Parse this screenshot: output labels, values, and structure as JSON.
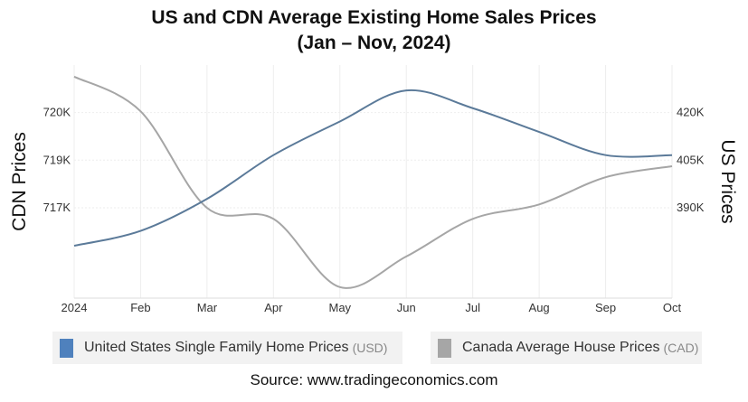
{
  "chart_data": {
    "type": "line",
    "title": "US and CDN Average Existing Home Sales Prices",
    "subtitle": "(Jan – Nov, 2024)",
    "categories": [
      "2024",
      "Feb",
      "Mar",
      "Apr",
      "May",
      "Jun",
      "Jul",
      "Aug",
      "Sep",
      "Oct"
    ],
    "y_left": {
      "label": "CDN Prices",
      "tick_labels": [
        "720K",
        "719K",
        "717K"
      ],
      "range": [
        716970,
        721000
      ]
    },
    "y_right": {
      "label": "US Prices",
      "ticks": [
        420000,
        405000,
        390000
      ],
      "tick_labels": [
        "420K",
        "405K",
        "390K"
      ],
      "range": [
        361500,
        435000
      ]
    },
    "series": [
      {
        "name": "United States Single Family Home Prices",
        "unit": "(USD)",
        "axis": "right",
        "color": "#5b7a99",
        "values": [
          378000,
          382700,
          392800,
          406600,
          417200,
          427000,
          421400,
          413900,
          406600,
          406600
        ]
      },
      {
        "name": "Canada Average House Prices",
        "unit": "(CAD)",
        "axis": "left",
        "color": "#a6a6a6",
        "values": [
          720800,
          720200,
          718530,
          718340,
          717160,
          717690,
          718340,
          718590,
          719060,
          719250
        ]
      }
    ],
    "legend_colors": [
      "#4f81bd",
      "#a6a6a6"
    ],
    "grid": true,
    "legend_position": "bottom",
    "source": "Source: www.tradingeconomics.com"
  }
}
